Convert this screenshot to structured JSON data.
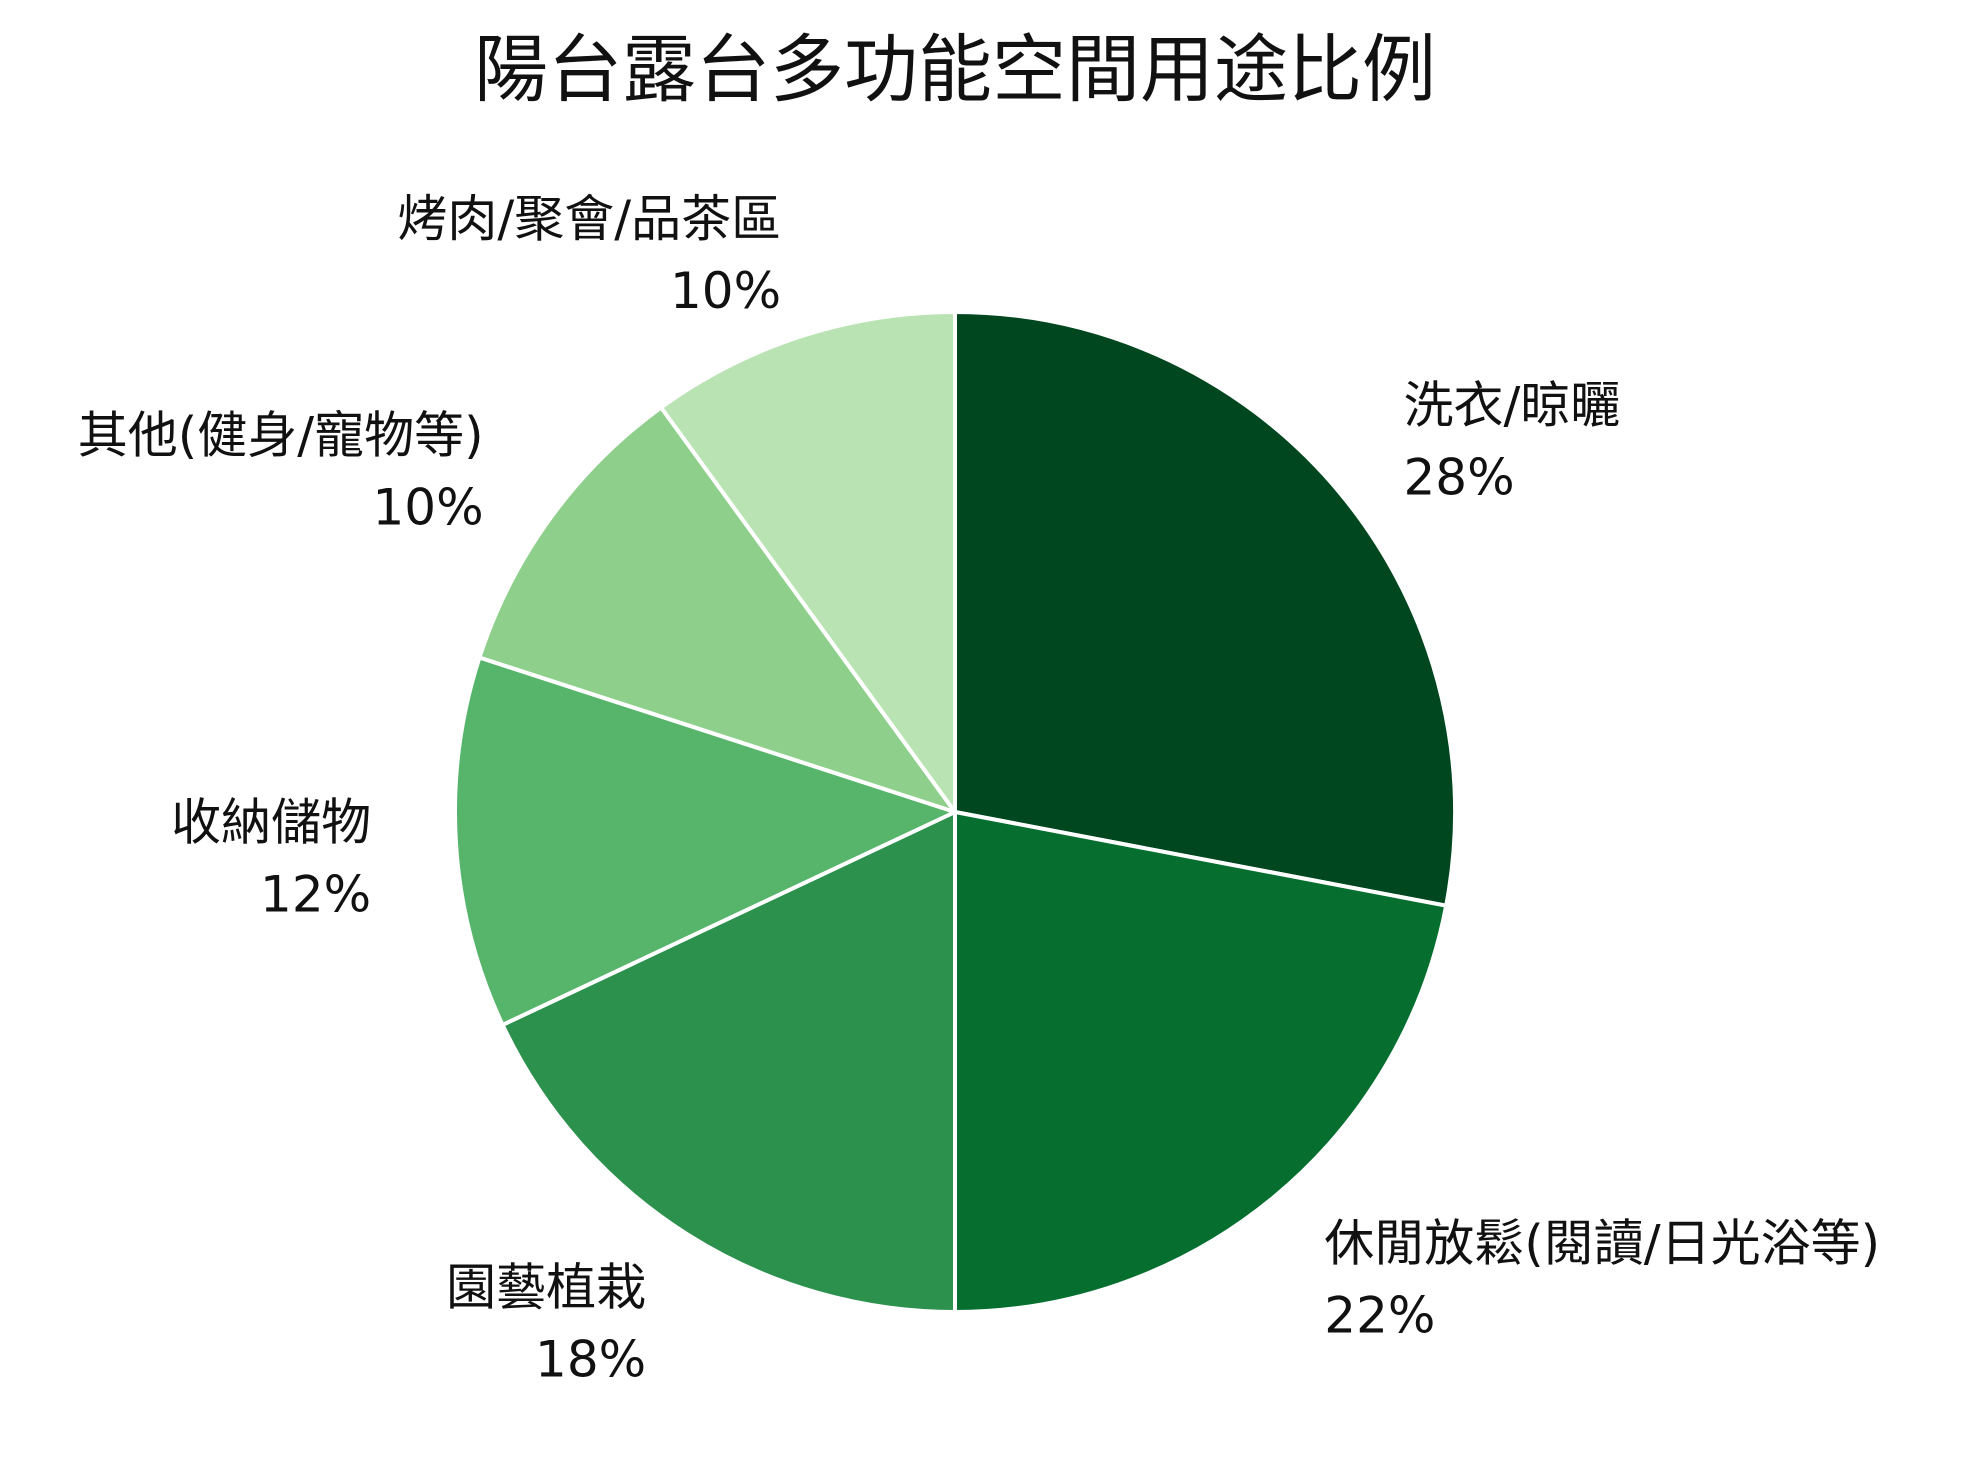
{
  "chart_data": {
    "type": "pie",
    "title": "陽台露台多功能空間用途比例",
    "start": "12 o'clock",
    "direction": "clockwise",
    "slices": [
      {
        "label": "洗衣/晾曬",
        "value": 28,
        "value_label": "28%",
        "color": "#00471f"
      },
      {
        "label": "休閒放鬆(閱讀/日光浴等)",
        "value": 22,
        "value_label": "22%",
        "color": "#066f30"
      },
      {
        "label": "園藝植栽",
        "value": 18,
        "value_label": "18%",
        "color": "#2c914d"
      },
      {
        "label": "收納儲物",
        "value": 12,
        "value_label": "12%",
        "color": "#56b46b"
      },
      {
        "label": "其他(健身/寵物等)",
        "value": 10,
        "value_label": "10%",
        "color": "#8ecf8b"
      },
      {
        "label": "烤肉/聚會/品茶區",
        "value": 10,
        "value_label": "10%",
        "color": "#b9e3b3"
      }
    ]
  }
}
